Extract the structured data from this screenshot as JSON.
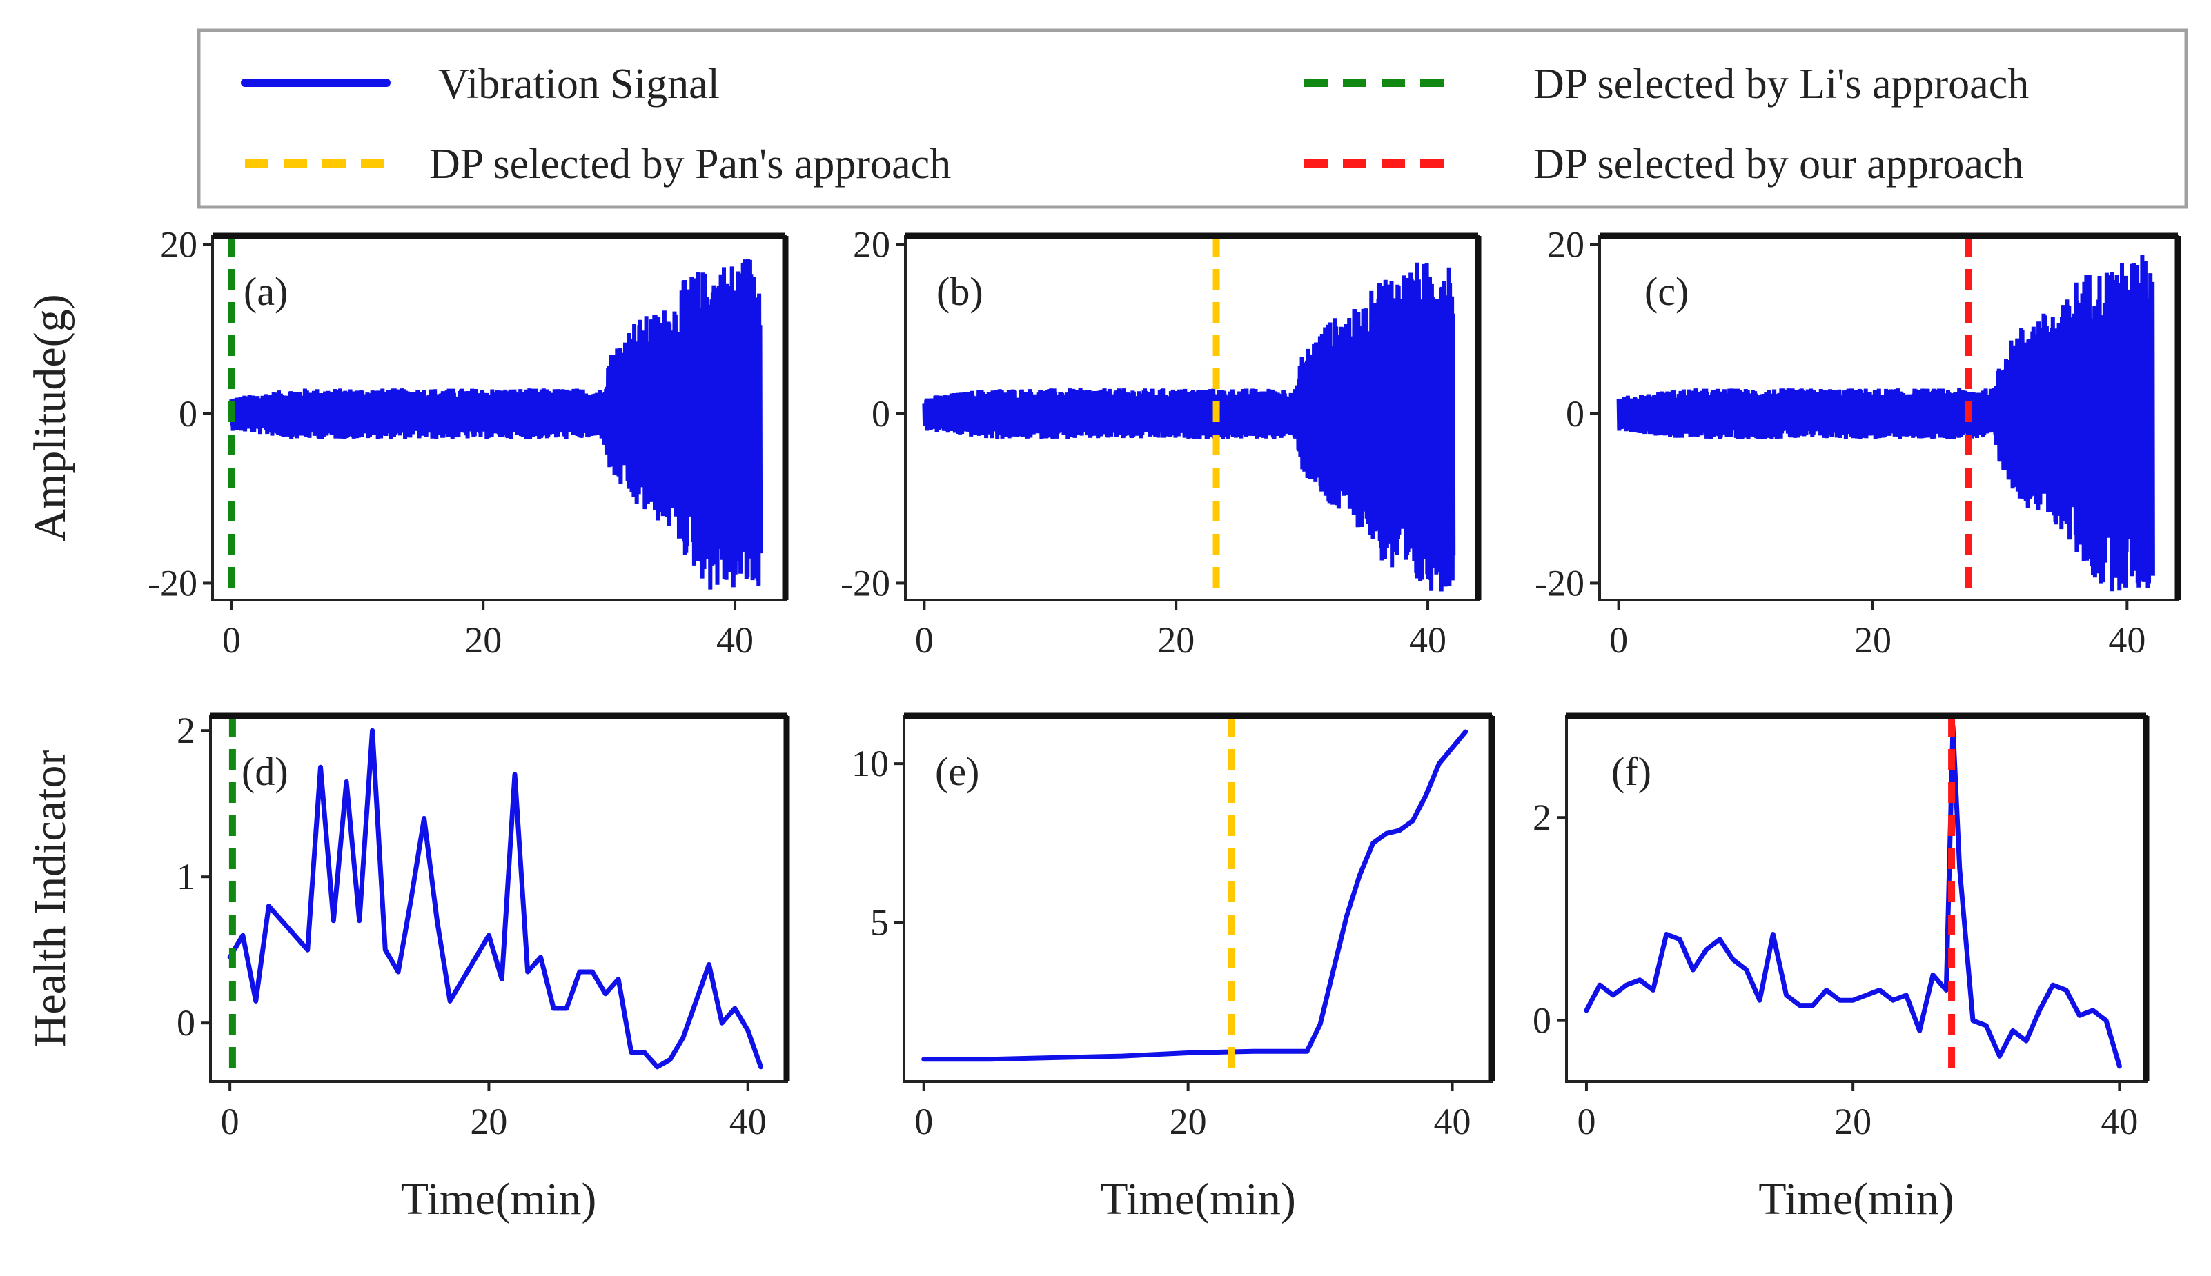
{
  "legend": {
    "items": [
      {
        "label": "Vibration Signal",
        "color": "#1010e8",
        "style": "solid"
      },
      {
        "label": "DP selected by Pan's  approach",
        "color": "#ffc800",
        "style": "dashed"
      },
      {
        "label": "DP selected by Li's  approach",
        "color": "#118811",
        "style": "dashed"
      },
      {
        "label": "DP selected by our  approach",
        "color": "#ff1a1a",
        "style": "dashed"
      }
    ]
  },
  "chart_data": [
    {
      "id": "a",
      "panel_label": "(a)",
      "type": "area",
      "ylabel": "Amplitude(g)",
      "xlabel": "",
      "xlim": [
        -1.5,
        44
      ],
      "ylim": [
        -22,
        21
      ],
      "xticks": [
        0,
        20,
        40
      ],
      "yticks": [
        -20,
        0,
        20
      ],
      "xtick_labels": [
        "0",
        "20",
        "40"
      ],
      "ytick_labels": [
        "-20",
        "0",
        "20"
      ],
      "signal_color": "#1010e8",
      "envelope": {
        "x": [
          0,
          5,
          10,
          15,
          20,
          25,
          29.5,
          30,
          32,
          35,
          36,
          37,
          38,
          39,
          40,
          41,
          42
        ],
        "upper": [
          2,
          3,
          3,
          3,
          3,
          3,
          3,
          7,
          11,
          13,
          16,
          17,
          17,
          18,
          18,
          19,
          19
        ],
        "lower": [
          -2,
          -3,
          -3,
          -3,
          -3,
          -3,
          -3,
          -7,
          -11,
          -14,
          -17,
          -19,
          -21,
          -21,
          -21,
          -21,
          -21
        ]
      },
      "dp": {
        "x": 0,
        "color": "#118811",
        "source": "Li's approach"
      }
    },
    {
      "id": "b",
      "panel_label": "(b)",
      "type": "area",
      "ylabel": "",
      "xlabel": "",
      "xlim": [
        -1.5,
        44
      ],
      "ylim": [
        -22,
        21
      ],
      "xticks": [
        0,
        20,
        40
      ],
      "yticks": [
        -20,
        0,
        20
      ],
      "xtick_labels": [
        "0",
        "20",
        "40"
      ],
      "ytick_labels": [
        "-20",
        "0",
        "20"
      ],
      "signal_color": "#1010e8",
      "envelope": {
        "x": [
          0,
          5,
          10,
          15,
          20,
          25,
          29.5,
          30,
          32,
          35,
          36,
          37,
          38,
          39,
          40,
          41,
          42
        ],
        "upper": [
          2,
          3,
          3,
          3,
          3,
          3,
          3,
          7,
          11,
          13,
          16,
          17,
          17,
          18,
          18,
          19,
          19
        ],
        "lower": [
          -2,
          -3,
          -3,
          -3,
          -3,
          -3,
          -3,
          -7,
          -11,
          -14,
          -17,
          -19,
          -21,
          -21,
          -21,
          -21,
          -21
        ]
      },
      "dp": {
        "x": 23.2,
        "color": "#ffc800",
        "source": "Pan's approach"
      }
    },
    {
      "id": "c",
      "panel_label": "(c)",
      "type": "area",
      "ylabel": "",
      "xlabel": "",
      "xlim": [
        -1.5,
        44
      ],
      "ylim": [
        -22,
        21
      ],
      "xticks": [
        0,
        20,
        40
      ],
      "yticks": [
        -20,
        0,
        20
      ],
      "xtick_labels": [
        "0",
        "20",
        "40"
      ],
      "ytick_labels": [
        "-20",
        "0",
        "20"
      ],
      "signal_color": "#1010e8",
      "envelope": {
        "x": [
          0,
          5,
          10,
          15,
          20,
          25,
          29.5,
          30,
          32,
          35,
          36,
          37,
          38,
          39,
          40,
          41,
          42
        ],
        "upper": [
          2,
          3,
          3,
          3,
          3,
          3,
          3,
          7,
          11,
          13,
          16,
          17,
          17,
          18,
          18,
          19,
          19
        ],
        "lower": [
          -2,
          -3,
          -3,
          -3,
          -3,
          -3,
          -3,
          -7,
          -11,
          -14,
          -17,
          -19,
          -21,
          -21,
          -21,
          -21,
          -21
        ]
      },
      "dp": {
        "x": 27.5,
        "color": "#ff1a1a",
        "source": "our approach"
      }
    },
    {
      "id": "d",
      "panel_label": "(d)",
      "type": "line",
      "ylabel": "Health Indicator",
      "xlabel": "Time(min)",
      "xlim": [
        -1.5,
        43
      ],
      "ylim": [
        -0.4,
        2.1
      ],
      "xticks": [
        0,
        20,
        40
      ],
      "yticks": [
        0,
        1,
        2
      ],
      "xtick_labels": [
        "0",
        "20",
        "40"
      ],
      "ytick_labels": [
        "0",
        "1",
        "2"
      ],
      "series": [
        {
          "name": "Health Indicator",
          "color": "#1010e8",
          "x": [
            0,
            1,
            2,
            3,
            4,
            5,
            6,
            7,
            8,
            9,
            10,
            11,
            12,
            13,
            14,
            15,
            16,
            17,
            18,
            19,
            20,
            21,
            22,
            23,
            24,
            25,
            26,
            27,
            28,
            29,
            30,
            31,
            32,
            33,
            34,
            35,
            36,
            37,
            38,
            39,
            40,
            41
          ],
          "y": [
            0.45,
            0.6,
            0.15,
            0.8,
            0.7,
            0.6,
            0.5,
            1.75,
            0.7,
            1.65,
            0.7,
            2.0,
            0.5,
            0.35,
            0.85,
            1.4,
            0.7,
            0.15,
            0.3,
            0.45,
            0.6,
            0.3,
            1.7,
            0.35,
            0.45,
            0.1,
            0.1,
            0.35,
            0.35,
            0.2,
            0.3,
            -0.2,
            -0.2,
            -0.3,
            -0.25,
            -0.1,
            0.15,
            0.4,
            0.0,
            0.1,
            -0.05,
            -0.3
          ]
        }
      ],
      "dp": {
        "x": 0.2,
        "color": "#118811",
        "source": "Li's approach"
      }
    },
    {
      "id": "e",
      "panel_label": "(e)",
      "type": "line",
      "ylabel": "",
      "xlabel": "Time(min)",
      "xlim": [
        -1.5,
        43
      ],
      "ylim": [
        0,
        11.5
      ],
      "xticks": [
        0,
        20,
        40
      ],
      "yticks": [
        5,
        10
      ],
      "xtick_labels": [
        "0",
        "20",
        "40"
      ],
      "ytick_labels": [
        "5",
        "10"
      ],
      "series": [
        {
          "name": "Health Indicator",
          "color": "#1010e8",
          "x": [
            0,
            5,
            10,
            15,
            20,
            25,
            29,
            30,
            31,
            32,
            33,
            34,
            35,
            36,
            37,
            38,
            39,
            40,
            41
          ],
          "y": [
            0.7,
            0.7,
            0.75,
            0.8,
            0.9,
            0.95,
            0.95,
            1.8,
            3.5,
            5.2,
            6.5,
            7.5,
            7.8,
            7.9,
            8.2,
            9.0,
            10.0,
            10.5,
            11.0
          ]
        }
      ],
      "dp": {
        "x": 23.3,
        "color": "#ffc800",
        "source": "Pan's approach"
      }
    },
    {
      "id": "f",
      "panel_label": "(f)",
      "type": "line",
      "ylabel": "",
      "xlabel": "Time(min)",
      "xlim": [
        -1.5,
        42
      ],
      "ylim": [
        -0.6,
        3.0
      ],
      "xticks": [
        0,
        20,
        40
      ],
      "yticks": [
        0,
        2
      ],
      "xtick_labels": [
        "0",
        "20",
        "40"
      ],
      "ytick_labels": [
        "0",
        "2"
      ],
      "series": [
        {
          "name": "Health Indicator",
          "color": "#1010e8",
          "x": [
            0,
            1,
            2,
            3,
            4,
            5,
            6,
            7,
            8,
            9,
            10,
            11,
            12,
            13,
            14,
            15,
            16,
            17,
            18,
            19,
            20,
            21,
            22,
            23,
            24,
            25,
            26,
            27,
            27.5,
            28,
            29,
            30,
            31,
            32,
            33,
            34,
            35,
            36,
            37,
            38,
            39,
            40
          ],
          "y": [
            0.1,
            0.35,
            0.25,
            0.35,
            0.4,
            0.3,
            0.85,
            0.8,
            0.5,
            0.7,
            0.8,
            0.6,
            0.5,
            0.2,
            0.85,
            0.25,
            0.15,
            0.15,
            0.3,
            0.2,
            0.2,
            0.25,
            0.3,
            0.2,
            0.25,
            -0.1,
            0.45,
            0.3,
            2.9,
            1.5,
            0.0,
            -0.05,
            -0.35,
            -0.1,
            -0.2,
            0.1,
            0.35,
            0.3,
            0.05,
            0.1,
            0.0,
            -0.45
          ]
        }
      ],
      "dp": {
        "x": 27.4,
        "color": "#ff1a1a",
        "source": "our approach"
      }
    }
  ]
}
